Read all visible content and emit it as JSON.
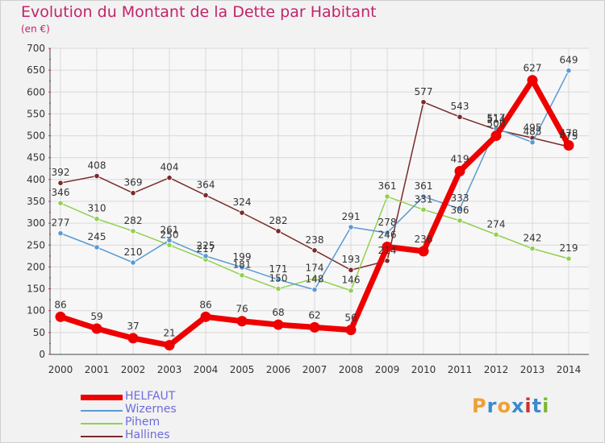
{
  "title": "Evolution du Montant de la Dette par Habitant",
  "unit": "(en €)",
  "logo": {
    "text": "Proxiti",
    "letters": [
      "P",
      "r",
      "o",
      "x",
      "i",
      "t",
      "i"
    ],
    "colors": [
      "#f0a030",
      "#3a8ad0",
      "#f0a030",
      "#3a8ad0",
      "#d03030",
      "#3a8ad0",
      "#7ab830"
    ]
  },
  "chart_data": {
    "type": "line",
    "x": [
      "2000",
      "2001",
      "2002",
      "2003",
      "2004",
      "2005",
      "2006",
      "2007",
      "2008",
      "2009",
      "2010",
      "2011",
      "2012",
      "2013",
      "2014"
    ],
    "ylim": [
      0,
      700
    ],
    "yticks": [
      0,
      50,
      100,
      150,
      200,
      250,
      300,
      350,
      400,
      450,
      500,
      550,
      600,
      650,
      700
    ],
    "grid": true,
    "legend_position": "bottom-left",
    "series": [
      {
        "name": "HELFAUT",
        "color": "#ee0000",
        "values": [
          86,
          59,
          37,
          21,
          86,
          76,
          68,
          62,
          56,
          246,
          236,
          419,
          500,
          627,
          478
        ],
        "labels": [
          "86",
          "59",
          "37",
          "21",
          "86",
          "76",
          "68",
          "62",
          "56",
          "246",
          "236",
          "419",
          "500",
          "627",
          "478"
        ]
      },
      {
        "name": "Wizernes",
        "color": "#5a9ad5",
        "values": [
          277,
          245,
          210,
          261,
          225,
          199,
          171,
          148,
          291,
          278,
          361,
          333,
          517,
          485,
          649
        ],
        "labels": [
          "277",
          "245",
          "210",
          "261",
          "225",
          "199",
          "171",
          "148",
          "291",
          "278",
          "361",
          "333",
          "517",
          "485",
          "649"
        ]
      },
      {
        "name": "Pihem",
        "color": "#92d050",
        "values": [
          346,
          310,
          282,
          250,
          217,
          181,
          150,
          174,
          146,
          361,
          331,
          306,
          274,
          242,
          219
        ],
        "labels": [
          "346",
          "310",
          "282",
          "250",
          "217",
          "181",
          "150",
          "174",
          "146",
          "361",
          "331",
          "306",
          "274",
          "242",
          "219"
        ]
      },
      {
        "name": "Hallines",
        "color": "#7a2a2a",
        "values": [
          392,
          408,
          369,
          404,
          364,
          324,
          282,
          238,
          193,
          214,
          577,
          543,
          514,
          495,
          475
        ],
        "labels": [
          "392",
          "408",
          "369",
          "404",
          "364",
          "324",
          "282",
          "238",
          "193",
          "214",
          "577",
          "543",
          "514",
          "495",
          "475"
        ]
      }
    ]
  }
}
